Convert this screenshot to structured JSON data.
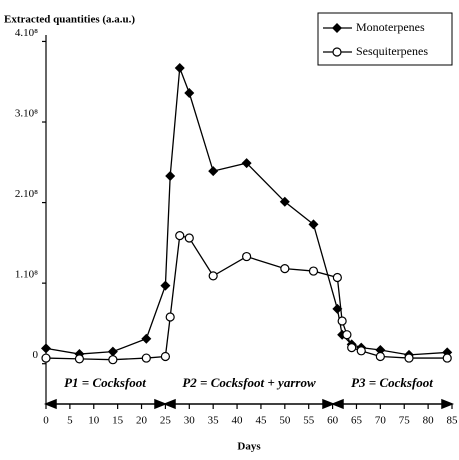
{
  "chart_data": {
    "type": "line",
    "y_label": "Extracted quantities  (a.a.u.)",
    "x_label": "Days",
    "annotations": [
      "P1 = Cocksfoot",
      "P2 = Cocksfoot + yarrow",
      "P3 = Cocksfoot"
    ],
    "xlim": [
      0,
      85
    ],
    "xticks": [
      0,
      5,
      10,
      15,
      20,
      25,
      30,
      35,
      40,
      45,
      50,
      55,
      60,
      65,
      70,
      75,
      80,
      85
    ],
    "ylim": [
      -50000000,
      408000000
    ],
    "yticks": [
      0,
      {
        "value": 100000000,
        "label": "1.10⁸"
      },
      {
        "value": 200000000,
        "label": "2.10⁸"
      },
      {
        "value": 300000000,
        "label": "3.10⁸"
      },
      {
        "value": 400000000,
        "label": "4.10⁸"
      }
    ],
    "legend": "top-right",
    "series": [
      {
        "name": "Monoterpenes",
        "color": "#000000",
        "marker": "diamond",
        "x": [
          0,
          7,
          14,
          21,
          25,
          26,
          28,
          30,
          35,
          42,
          50,
          56,
          61,
          62,
          64,
          66,
          70,
          76,
          84
        ],
        "values": [
          19000000,
          12000000,
          15000000,
          31000000,
          97000000,
          233000000,
          367000000,
          336000000,
          239000000,
          249000000,
          201000000,
          173000000,
          68000000,
          36000000,
          24000000,
          20000000,
          17000000,
          11000000,
          14000000
        ]
      },
      {
        "name": "Sesquiterpenes",
        "color": "#000000",
        "marker": "circle",
        "x": [
          0,
          7,
          14,
          21,
          25,
          26,
          28,
          30,
          35,
          42,
          50,
          56,
          61,
          62,
          63,
          64,
          66,
          70,
          76,
          84
        ],
        "values": [
          7000000,
          6000000,
          5000000,
          7000000,
          9000000,
          58000000,
          159000000,
          156000000,
          109000000,
          133000000,
          118000000,
          115000000,
          107000000,
          53000000,
          36000000,
          20000000,
          16000000,
          9000000,
          7000000,
          7000000
        ]
      }
    ]
  }
}
